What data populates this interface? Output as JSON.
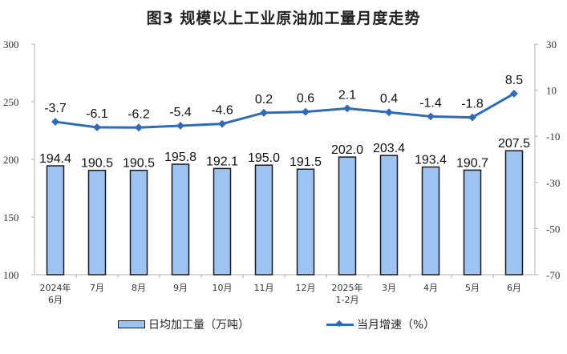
{
  "title": "图3  规模以上工业原油加工量月度走势",
  "legend": {
    "bar_label": "日均加工量（万吨）",
    "line_label": "当月增速（%）"
  },
  "colors": {
    "bar_fill": "#9dc3f3",
    "bar_stroke": "#1a1a1a",
    "line": "#2e6bb8",
    "axis": "#b0b0b0"
  },
  "chart_data": {
    "type": "bar+line",
    "title": "图3  规模以上工业原油加工量月度走势",
    "categories": [
      [
        "2024年",
        "6月"
      ],
      [
        "7月"
      ],
      [
        "8月"
      ],
      [
        "9月"
      ],
      [
        "10月"
      ],
      [
        "11月"
      ],
      [
        "12月"
      ],
      [
        "2025年",
        "1-2月"
      ],
      [
        "3月"
      ],
      [
        "4月"
      ],
      [
        "5月"
      ],
      [
        "6月"
      ]
    ],
    "series": [
      {
        "name": "日均加工量（万吨）",
        "type": "bar",
        "axis": "left",
        "values": [
          194.4,
          190.5,
          190.5,
          195.8,
          192.1,
          195.0,
          191.5,
          202.0,
          203.4,
          193.4,
          190.7,
          207.5
        ],
        "labels": [
          "194.4",
          "190.5",
          "190.5",
          "195.8",
          "192.1",
          "195.0",
          "191.5",
          "202.0",
          "203.4",
          "193.4",
          "190.7",
          "207.5"
        ]
      },
      {
        "name": "当月增速（%）",
        "type": "line",
        "axis": "right",
        "values": [
          -3.7,
          -6.1,
          -6.2,
          -5.4,
          -4.6,
          0.2,
          0.6,
          2.1,
          0.4,
          -1.4,
          -1.8,
          8.5
        ],
        "labels": [
          "-3.7",
          "-6.1",
          "-6.2",
          "-5.4",
          "-4.6",
          "0.2",
          "0.6",
          "2.1",
          "0.4",
          "-1.4",
          "-1.8",
          "8.5"
        ]
      }
    ],
    "left_axis": {
      "min": 100,
      "max": 300,
      "ticks": [
        300,
        250,
        200,
        150,
        100
      ]
    },
    "right_axis": {
      "min": -70,
      "max": 30,
      "ticks": [
        30,
        10,
        -10,
        -30,
        -50,
        -70
      ]
    },
    "xlabel": "",
    "ylabel": "",
    "grid": false,
    "legend_position": "bottom"
  }
}
